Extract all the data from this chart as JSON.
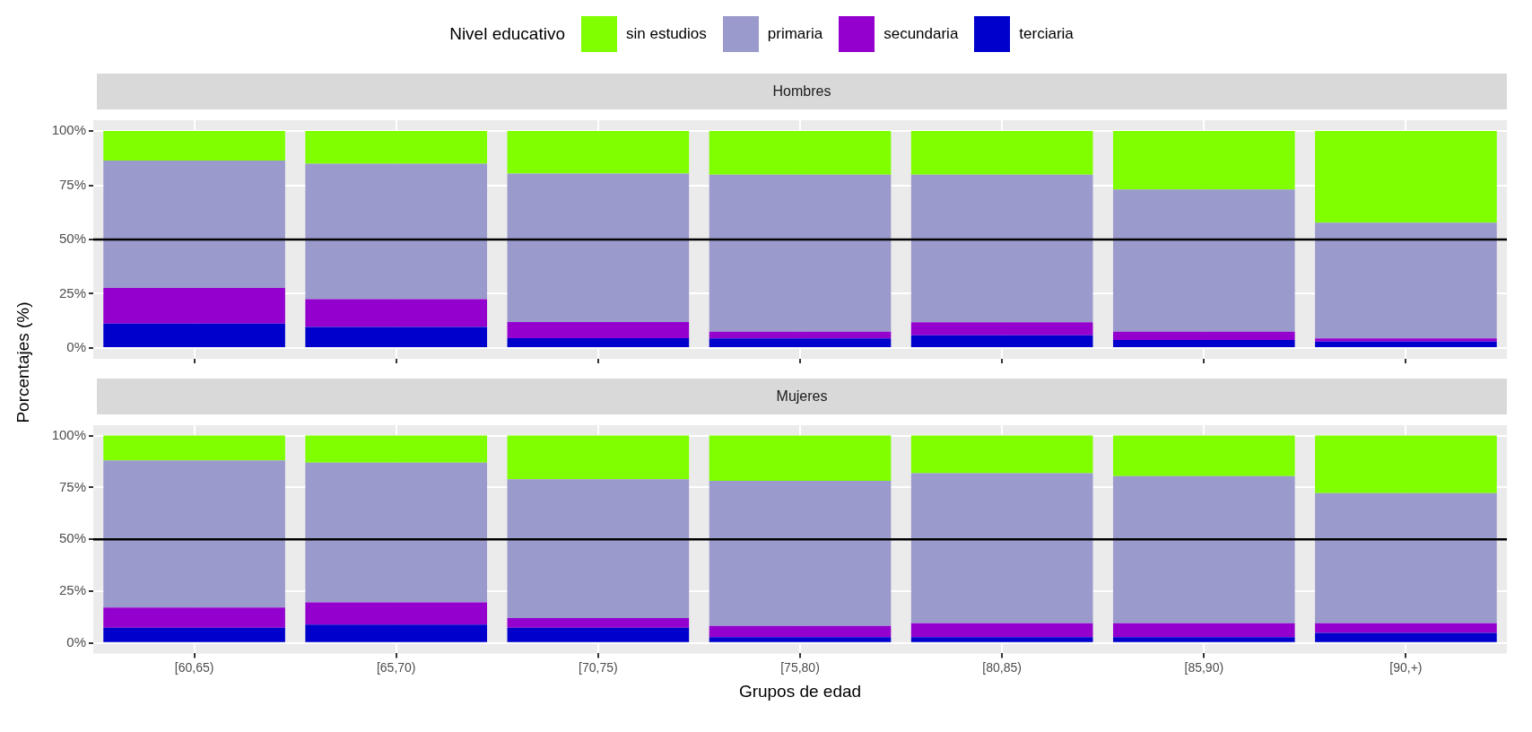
{
  "chart_data": [
    {
      "type": "bar",
      "title": "Hombres",
      "ylabel": "Porcentajes (%)",
      "legend_title": "Nivel educativo",
      "legend": "top",
      "stacked": true,
      "grid": true,
      "tick_labels": "y",
      "categories": [
        null,
        null,
        null,
        null,
        null,
        null,
        null
      ],
      "ylim": [
        -5,
        105
      ],
      "yticks": [
        {
          "value": 0,
          "label": "0%"
        },
        {
          "value": 25,
          "label": "25%"
        },
        {
          "value": 50,
          "label": "50%"
        },
        {
          "value": 75,
          "label": "75%"
        },
        {
          "value": 100,
          "label": "100%"
        }
      ],
      "ref_lines": [
        {
          "axis": "y",
          "value": 50,
          "color": "#000000"
        }
      ],
      "series": [
        {
          "name": "terciaria",
          "color": "#0000cd",
          "values": [
            11.2,
            9.7,
            4.5,
            4.4,
            5.9,
            3.7,
            3.0
          ]
        },
        {
          "name": "secundaria",
          "color": "#9400cd",
          "values": [
            16.5,
            12.8,
            7.5,
            3.1,
            6.0,
            3.8,
            1.4
          ]
        },
        {
          "name": "primaria",
          "color": "#9a9acc",
          "values": [
            58.7,
            62.4,
            68.4,
            72.4,
            68.0,
            65.6,
            53.4
          ]
        },
        {
          "name": "sin estudios",
          "color": "#7fff00",
          "values": [
            13.6,
            15.1,
            19.6,
            20.1,
            20.1,
            26.9,
            42.2
          ]
        }
      ]
    },
    {
      "type": "bar",
      "title": "Mujeres",
      "xlabel": "Grupos de edad",
      "stacked": true,
      "grid": true,
      "categories": [
        "[60,65)",
        "[65,70)",
        "[70,75)",
        "[75,80)",
        "[80,85)",
        "[85,90)",
        "[90,+)"
      ],
      "ylim": [
        -5,
        105
      ],
      "yticks": [
        {
          "value": 0,
          "label": "0%"
        },
        {
          "value": 25,
          "label": "25%"
        },
        {
          "value": 50,
          "label": "50%"
        },
        {
          "value": 75,
          "label": "75%"
        },
        {
          "value": 100,
          "label": "100%"
        }
      ],
      "ref_lines": [
        {
          "axis": "y",
          "value": 50,
          "color": "#000000"
        }
      ],
      "series": [
        {
          "color": "#0000cd",
          "values": [
            7.4,
            8.9,
            7.4,
            2.8,
            2.8,
            2.8,
            4.9
          ]
        },
        {
          "color": "#9400cd",
          "values": [
            9.7,
            10.7,
            4.6,
            5.4,
            6.8,
            6.8,
            4.7
          ]
        },
        {
          "color": "#9a9acc",
          "values": [
            70.9,
            67.4,
            66.9,
            70.0,
            72.3,
            70.9,
            62.7
          ]
        },
        {
          "color": "#7fff00",
          "values": [
            12.0,
            13.0,
            21.1,
            21.8,
            18.1,
            19.5,
            27.7
          ]
        }
      ]
    }
  ]
}
